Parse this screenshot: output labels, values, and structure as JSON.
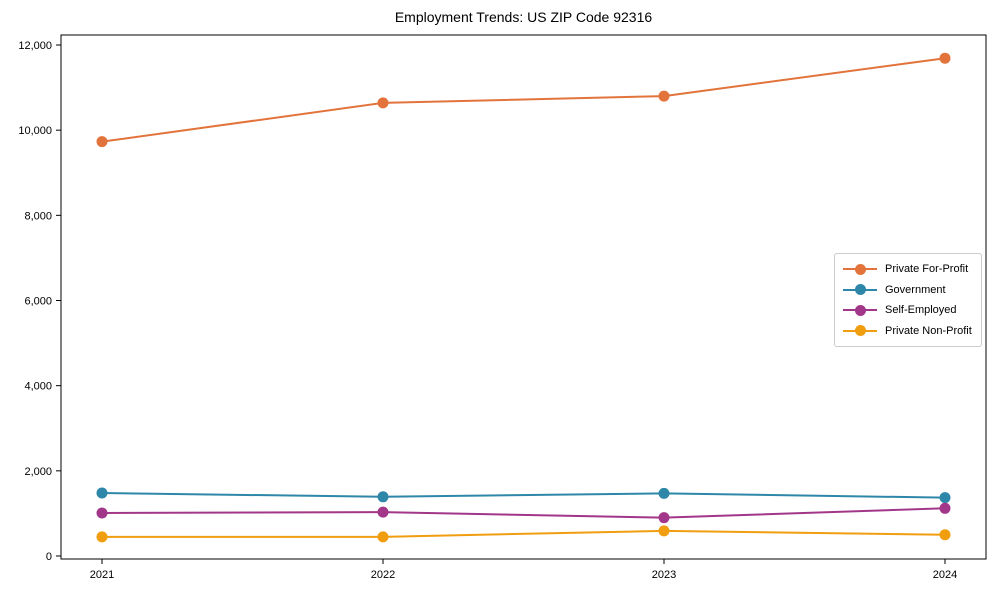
{
  "figure": {
    "background_color": "#ffffff",
    "axis_color": "#000000"
  },
  "chart_data": {
    "type": "line",
    "title": "Employment Trends: US ZIP Code 92316",
    "xlabel": "",
    "ylabel": "",
    "categories": [
      "2021",
      "2022",
      "2023",
      "2024"
    ],
    "series": [
      {
        "name": "Private For-Profit",
        "color": "#e2733b",
        "values": [
          9730,
          10640,
          10800,
          11690
        ]
      },
      {
        "name": "Government",
        "color": "#2e87a8",
        "values": [
          1480,
          1390,
          1470,
          1370
        ]
      },
      {
        "name": "Self-Employed",
        "color": "#a23689",
        "values": [
          1010,
          1030,
          900,
          1120
        ]
      },
      {
        "name": "Private Non-Profit",
        "color": "#f09d10",
        "values": [
          450,
          450,
          590,
          500
        ]
      }
    ],
    "ylim": [
      0,
      12000
    ],
    "yticks": [
      0,
      2000,
      4000,
      6000,
      8000,
      10000,
      12000
    ],
    "ytick_labels": [
      "0",
      "2,000",
      "4,000",
      "6,000",
      "8,000",
      "10,000",
      "12,000"
    ],
    "grid": false,
    "legend_position": "right",
    "marker": "circle",
    "line_width": 2,
    "marker_radius": 5.5
  }
}
